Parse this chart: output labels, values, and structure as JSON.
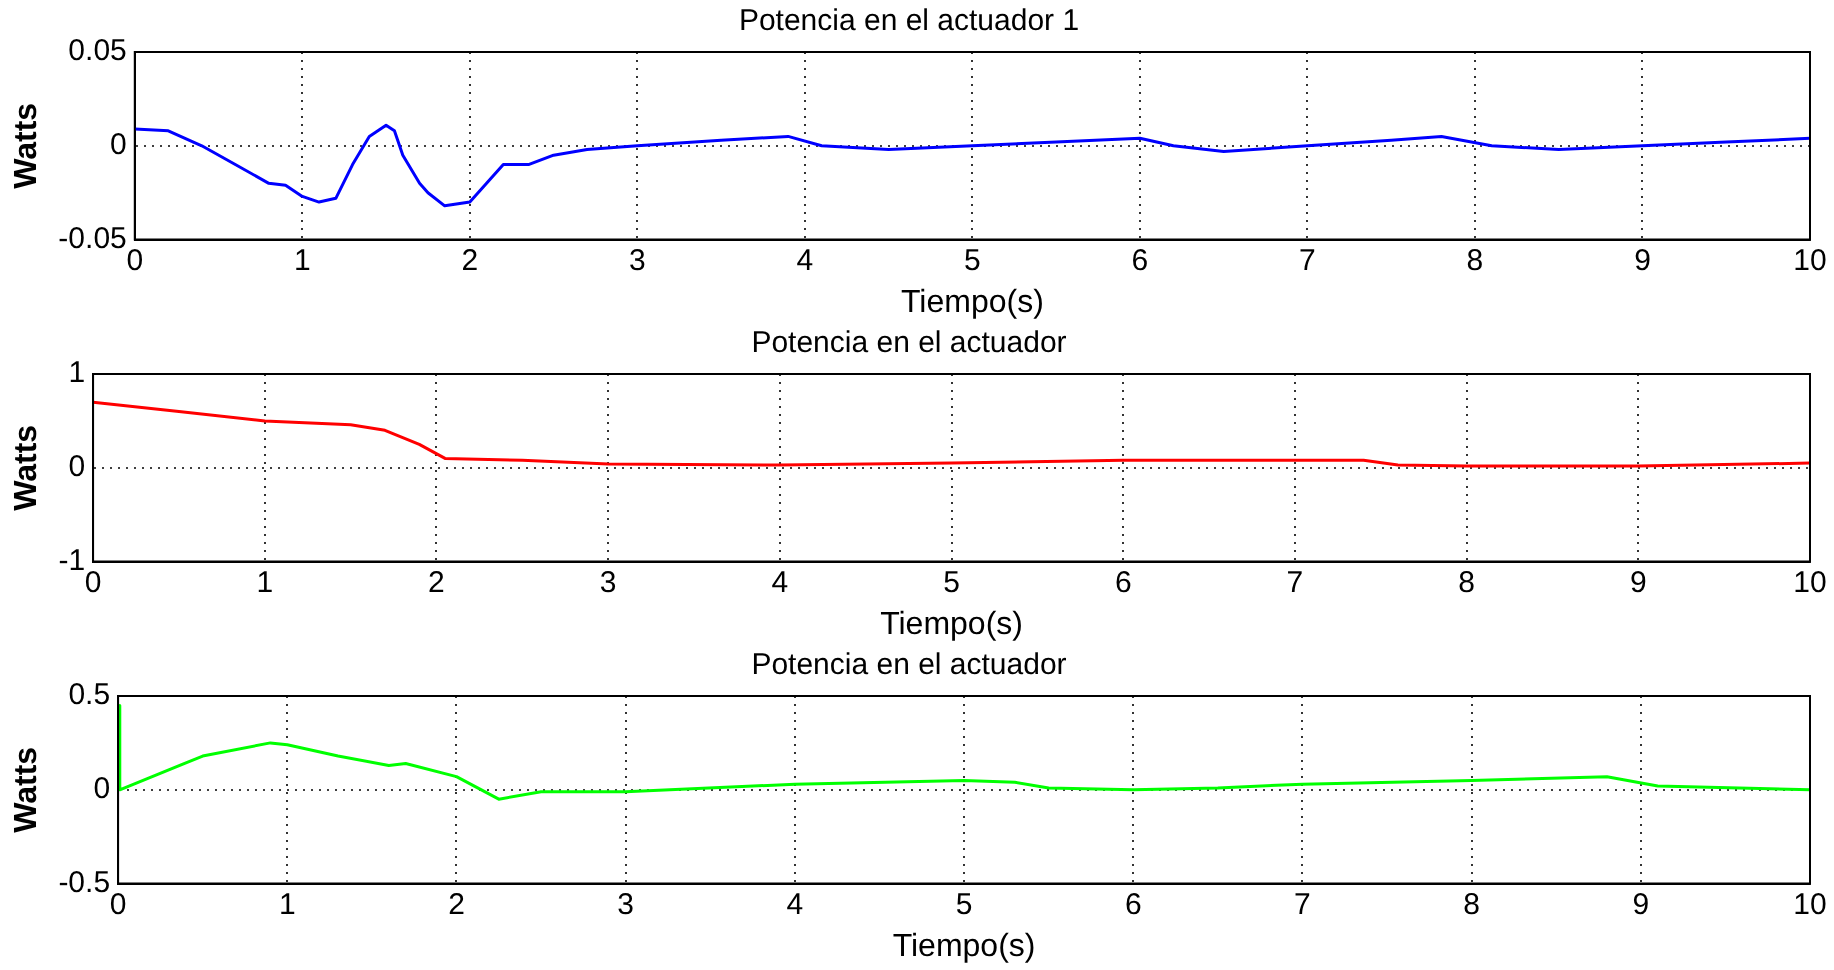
{
  "chart_data": [
    {
      "type": "line",
      "title": "Potencia en el actuador 1",
      "xlabel": "Tiempo(s)",
      "ylabel": "Watts",
      "x": [
        0,
        0.2,
        0.4,
        0.6,
        0.8,
        0.9,
        1.0,
        1.1,
        1.2,
        1.3,
        1.4,
        1.5,
        1.55,
        1.6,
        1.7,
        1.75,
        1.85,
        2.0,
        2.1,
        2.2,
        2.35,
        2.5,
        2.7,
        3,
        3.5,
        3.9,
        4.1,
        4.5,
        5,
        5.5,
        6,
        6.2,
        6.5,
        7,
        7.5,
        7.8,
        8.1,
        8.5,
        9,
        9.5,
        10
      ],
      "series": [
        {
          "color": "#0000ff",
          "values": [
            0.009,
            0.008,
            0.0,
            -0.01,
            -0.02,
            -0.021,
            -0.027,
            -0.03,
            -0.028,
            -0.01,
            0.005,
            0.011,
            0.008,
            -0.005,
            -0.02,
            -0.025,
            -0.032,
            -0.03,
            -0.02,
            -0.01,
            -0.01,
            -0.005,
            -0.002,
            0,
            0.003,
            0.005,
            0.0,
            -0.002,
            0,
            0.002,
            0.004,
            0.0,
            -0.003,
            0,
            0.003,
            0.005,
            0.0,
            -0.002,
            0,
            0.002,
            0.004
          ]
        }
      ],
      "xlim": [
        0,
        10
      ],
      "ylim": [
        -0.05,
        0.05
      ],
      "xticks": [
        0,
        1,
        2,
        3,
        4,
        5,
        6,
        7,
        8,
        9,
        10
      ],
      "yticks": [
        -0.05,
        0,
        0.05
      ],
      "grid": true
    },
    {
      "type": "line",
      "title": "Potencia en el actuador",
      "xlabel": "Tiempo(s)",
      "ylabel": "Watts",
      "x": [
        0,
        0.5,
        1,
        1.5,
        1.7,
        1.9,
        2.05,
        2.5,
        3,
        4,
        5,
        6,
        7,
        7.4,
        7.6,
        8,
        9,
        10
      ],
      "series": [
        {
          "color": "#ff0000",
          "values": [
            0.7,
            0.6,
            0.5,
            0.46,
            0.4,
            0.25,
            0.1,
            0.08,
            0.04,
            0.03,
            0.05,
            0.08,
            0.08,
            0.08,
            0.03,
            0.02,
            0.02,
            0.05
          ]
        }
      ],
      "xlim": [
        0,
        10
      ],
      "ylim": [
        -1,
        1
      ],
      "xticks": [
        0,
        1,
        2,
        3,
        4,
        5,
        6,
        7,
        8,
        9,
        10
      ],
      "yticks": [
        -1,
        0,
        1
      ],
      "grid": true
    },
    {
      "type": "line",
      "title": "Potencia en el actuador",
      "xlabel": "Tiempo(s)",
      "ylabel": "Watts",
      "x": [
        0,
        0.01,
        0.5,
        0.9,
        1.0,
        1.3,
        1.6,
        1.7,
        2.0,
        2.25,
        2.5,
        3,
        4,
        5,
        5.3,
        5.5,
        6,
        6.5,
        7,
        8,
        8.8,
        9.1,
        10
      ],
      "series": [
        {
          "color": "#00ff00",
          "values": [
            0.45,
            0,
            0.18,
            0.25,
            0.24,
            0.18,
            0.13,
            0.14,
            0.07,
            -0.05,
            -0.01,
            -0.01,
            0.03,
            0.05,
            0.04,
            0.01,
            0.0,
            0.01,
            0.03,
            0.05,
            0.07,
            0.02,
            0.0
          ]
        }
      ],
      "xlim": [
        0,
        10
      ],
      "ylim": [
        -0.5,
        0.5
      ],
      "xticks": [
        0,
        1,
        2,
        3,
        4,
        5,
        6,
        7,
        8,
        9,
        10
      ],
      "yticks": [
        -0.5,
        0,
        0.5
      ],
      "grid": true
    }
  ]
}
